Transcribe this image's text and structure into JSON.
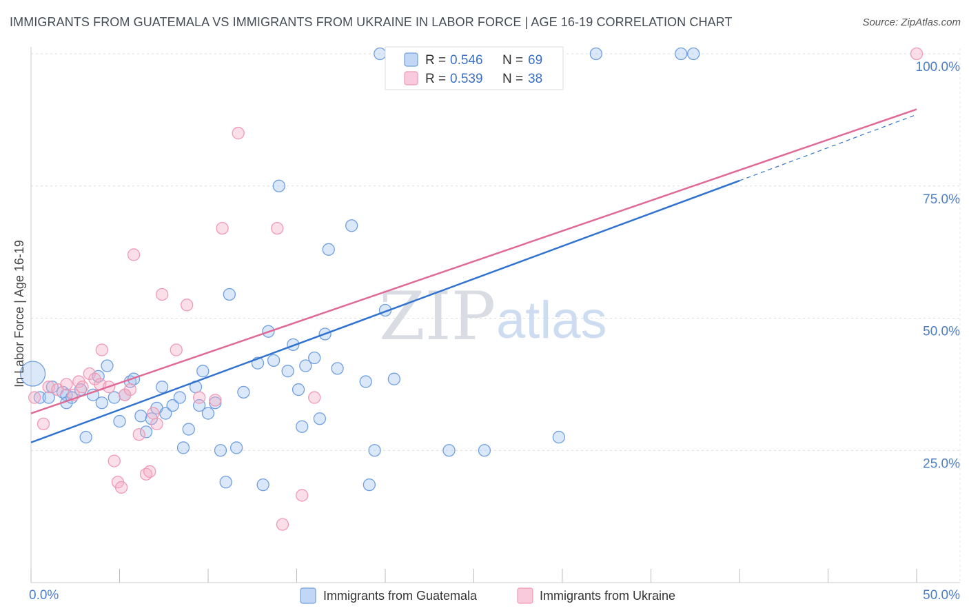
{
  "header": {
    "title": "IMMIGRANTS FROM GUATEMALA VS IMMIGRANTS FROM UKRAINE IN LABOR FORCE | AGE 16-19 CORRELATION CHART",
    "source": "Source: ZipAtlas.com"
  },
  "watermark": {
    "zip": "ZIP",
    "atlas": "atlas"
  },
  "chart_data": {
    "type": "scatter",
    "title": "IMMIGRANTS FROM GUATEMALA VS IMMIGRANTS FROM UKRAINE IN LABOR FORCE | AGE 16-19 CORRELATION CHART",
    "xlabel": "",
    "ylabel": "In Labor Force | Age 16-19",
    "xlim": [
      0,
      50
    ],
    "ylim": [
      0,
      100
    ],
    "x_tick_labels": [
      "0.0%",
      "50.0%"
    ],
    "y_ticks": [
      25,
      50,
      75,
      100
    ],
    "y_tick_labels": [
      "25.0%",
      "50.0%",
      "75.0%",
      "100.0%"
    ],
    "grid": true,
    "legend_placement": "top-center",
    "stats": [
      {
        "r_label": "R =",
        "r_value": "0.546",
        "n_label": "N =",
        "n_value": "69"
      },
      {
        "r_label": "R =",
        "r_value": "0.539",
        "n_label": "N =",
        "n_value": "38"
      }
    ],
    "series": [
      {
        "name": "Immigrants from Guatemala",
        "color": "#6f9fe0",
        "line_color": "#2f72d0",
        "trend": {
          "x0": 0,
          "y0": 26.5,
          "x1": 40,
          "y1": 76,
          "dash_to_x": 50,
          "dash_to_y": 88.5
        },
        "points": [
          [
            0.1,
            39.5
          ],
          [
            0.5,
            35
          ],
          [
            1.0,
            35
          ],
          [
            1.2,
            37
          ],
          [
            1.8,
            36
          ],
          [
            2.0,
            35.5
          ],
          [
            2.0,
            34
          ],
          [
            2.3,
            35
          ],
          [
            2.8,
            36.5
          ],
          [
            3.1,
            27.5
          ],
          [
            3.5,
            35.5
          ],
          [
            3.8,
            39
          ],
          [
            4.0,
            34
          ],
          [
            4.3,
            41
          ],
          [
            4.7,
            35
          ],
          [
            5.0,
            30.5
          ],
          [
            5.3,
            35.5
          ],
          [
            5.6,
            38
          ],
          [
            5.8,
            38.5
          ],
          [
            6.2,
            31.5
          ],
          [
            6.5,
            28.5
          ],
          [
            6.8,
            31
          ],
          [
            7.1,
            33
          ],
          [
            7.4,
            37
          ],
          [
            7.6,
            32
          ],
          [
            8.0,
            33.5
          ],
          [
            8.4,
            35
          ],
          [
            8.6,
            25.5
          ],
          [
            8.9,
            29
          ],
          [
            9.3,
            37
          ],
          [
            9.5,
            33.5
          ],
          [
            9.7,
            40
          ],
          [
            10.0,
            32
          ],
          [
            10.4,
            34
          ],
          [
            10.7,
            25
          ],
          [
            11.0,
            19
          ],
          [
            11.2,
            54.5
          ],
          [
            11.6,
            25.5
          ],
          [
            12.0,
            36
          ],
          [
            12.8,
            41.5
          ],
          [
            13.1,
            18.5
          ],
          [
            13.4,
            47.5
          ],
          [
            13.7,
            42
          ],
          [
            14.0,
            75
          ],
          [
            14.5,
            40
          ],
          [
            14.8,
            45
          ],
          [
            15.1,
            36.5
          ],
          [
            15.3,
            29.5
          ],
          [
            15.5,
            41
          ],
          [
            16.0,
            42.5
          ],
          [
            16.3,
            31
          ],
          [
            16.6,
            47
          ],
          [
            16.8,
            63
          ],
          [
            17.3,
            40.5
          ],
          [
            18.1,
            67.5
          ],
          [
            18.9,
            38
          ],
          [
            19.1,
            18.5
          ],
          [
            19.4,
            25
          ],
          [
            19.7,
            100
          ],
          [
            20.0,
            51.5
          ],
          [
            20.5,
            38.5
          ],
          [
            23.6,
            25
          ],
          [
            25.6,
            25
          ],
          [
            29.8,
            27.5
          ],
          [
            31.9,
            100
          ],
          [
            36.7,
            100
          ],
          [
            37.4,
            100
          ]
        ]
      },
      {
        "name": "Immigrants from Ukraine",
        "color": "#f09ab5",
        "line_color": "#e06a95",
        "trend": {
          "x0": 0,
          "y0": 32,
          "x1": 50,
          "y1": 89.5
        },
        "points": [
          [
            0.2,
            35
          ],
          [
            0.7,
            30
          ],
          [
            1.0,
            37
          ],
          [
            1.5,
            36.5
          ],
          [
            2.0,
            37.5
          ],
          [
            2.4,
            35.5
          ],
          [
            2.7,
            38
          ],
          [
            2.9,
            37
          ],
          [
            3.3,
            39.5
          ],
          [
            3.6,
            38.5
          ],
          [
            3.9,
            37.5
          ],
          [
            4.0,
            44
          ],
          [
            4.4,
            37
          ],
          [
            4.7,
            23
          ],
          [
            4.9,
            19
          ],
          [
            5.1,
            18
          ],
          [
            5.3,
            35.5
          ],
          [
            5.6,
            36.5
          ],
          [
            5.8,
            62
          ],
          [
            6.1,
            28
          ],
          [
            6.5,
            20.5
          ],
          [
            6.7,
            21
          ],
          [
            6.9,
            32
          ],
          [
            7.1,
            30
          ],
          [
            7.4,
            54.5
          ],
          [
            8.2,
            44
          ],
          [
            8.8,
            52.5
          ],
          [
            9.5,
            35
          ],
          [
            10.4,
            34.5
          ],
          [
            10.8,
            67
          ],
          [
            11.7,
            85
          ],
          [
            13.9,
            67
          ],
          [
            14.2,
            11
          ],
          [
            15.3,
            16.5
          ],
          [
            16.0,
            35
          ],
          [
            50.0,
            100
          ]
        ]
      }
    ]
  }
}
